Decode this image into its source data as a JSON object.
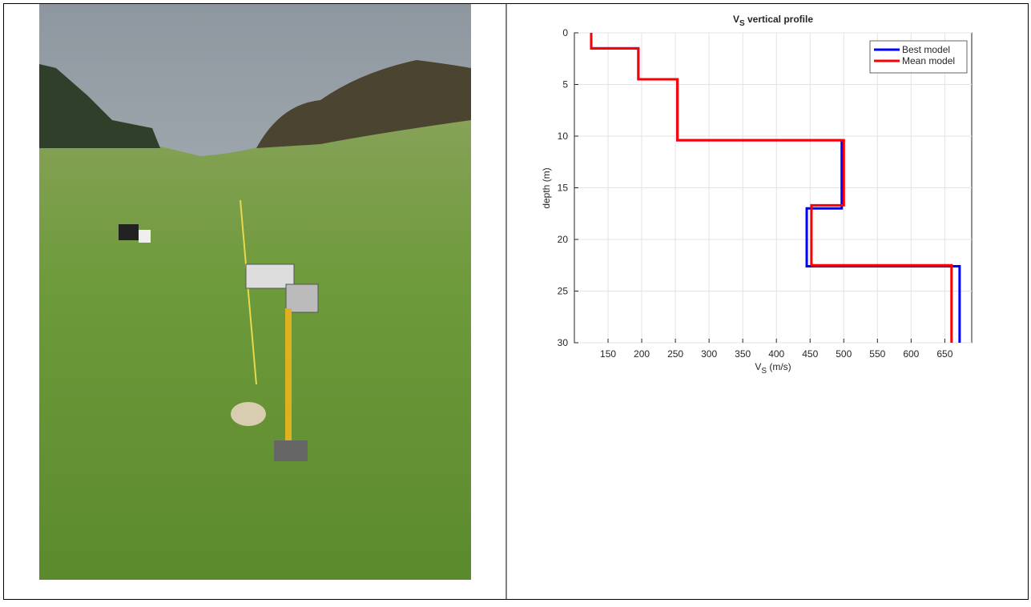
{
  "chart_data": {
    "type": "step",
    "title": "V",
    "title_subscript": "S",
    "title_suffix": " vertical profile",
    "xlabel": "V",
    "xlabel_subscript": "S",
    "xlabel_suffix": " (m/s)",
    "ylabel": "depth (m)",
    "xlim": [
      100,
      690
    ],
    "xticks": [
      150,
      200,
      250,
      300,
      350,
      400,
      450,
      500,
      550,
      600,
      650
    ],
    "ylim": [
      0,
      30
    ],
    "yticks": [
      0,
      5,
      10,
      15,
      20,
      25,
      30
    ],
    "y_reversed": true,
    "grid": true,
    "legend": "upper-right",
    "series": [
      {
        "name": "Best model",
        "color": "#0000ff",
        "x": [
          125,
          125,
          195,
          195,
          253,
          253,
          497,
          497,
          445,
          445,
          672,
          672
        ],
        "values": [
          0,
          1.5,
          1.5,
          4.5,
          4.5,
          10.4,
          10.4,
          17,
          17,
          22.6,
          22.6,
          30
        ]
      },
      {
        "name": "Mean model",
        "color": "#ff0000",
        "x": [
          125,
          125,
          195,
          195,
          253,
          253,
          500,
          500,
          452,
          452,
          660,
          660
        ],
        "values": [
          0,
          1.5,
          1.5,
          4.5,
          4.5,
          10.4,
          10.4,
          16.7,
          16.7,
          22.5,
          22.5,
          30
        ]
      }
    ]
  }
}
